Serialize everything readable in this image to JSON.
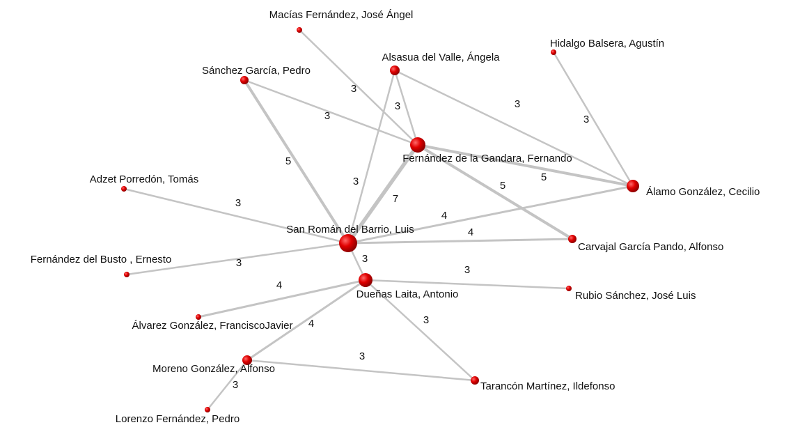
{
  "nodes": [
    {
      "label": "Macías Fernández, José Ángel"
    },
    {
      "label": "Hidalgo Balsera, Agustín"
    },
    {
      "label": "Alsasua del Valle, Ángela"
    },
    {
      "label": "Sánchez García, Pedro"
    },
    {
      "label": "Fernández de la Gandara, Fernando"
    },
    {
      "label": "Adzet Porredón, Tomás"
    },
    {
      "label": "Álamo González, Cecilio"
    },
    {
      "label": "San Román del Barrio, Luis"
    },
    {
      "label": "Carvajal García Pando, Alfonso"
    },
    {
      "label": "Fernández del Busto , Ernesto"
    },
    {
      "label": "Dueñas Laita, Antonio"
    },
    {
      "label": "Rubio Sánchez, José Luis"
    },
    {
      "label": "Álvarez González, FranciscoJavier"
    },
    {
      "label": "Moreno González, Alfonso"
    },
    {
      "label": "Tarancón Martínez, Ildefonso"
    },
    {
      "label": "Lorenzo Fernández, Pedro"
    }
  ],
  "edges": [
    {
      "label": "3"
    },
    {
      "label": "3"
    },
    {
      "label": "3"
    },
    {
      "label": "3"
    },
    {
      "label": "3"
    },
    {
      "label": "5"
    },
    {
      "label": "3"
    },
    {
      "label": "5"
    },
    {
      "label": "5"
    },
    {
      "label": "7"
    },
    {
      "label": "4"
    },
    {
      "label": "4"
    },
    {
      "label": "3"
    },
    {
      "label": "3"
    },
    {
      "label": "3"
    },
    {
      "label": "3"
    },
    {
      "label": "4"
    },
    {
      "label": "4"
    },
    {
      "label": "3"
    },
    {
      "label": "3"
    },
    {
      "label": "3"
    }
  ]
}
